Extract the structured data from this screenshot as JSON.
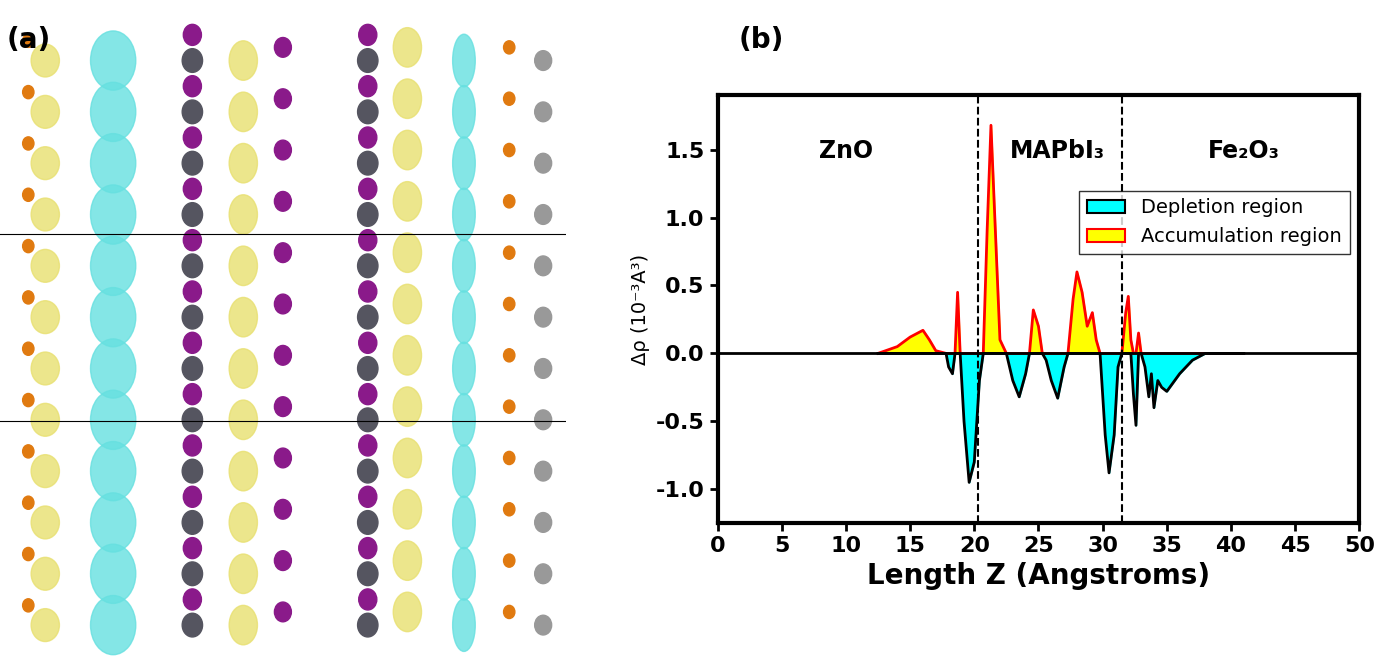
{
  "chart_data": {
    "type": "area",
    "panel_labels": [
      "(a)",
      "(b)"
    ],
    "x_label": "Length Z (Angstroms)",
    "y_label": "Δρ (10⁻³A³)",
    "regions": [
      "ZnO",
      "MAPbI₃",
      "Fe₂O₃"
    ],
    "boundaries": [
      20.3,
      31.5
    ],
    "x": [
      12.5,
      14,
      15,
      16,
      16.5,
      17,
      17.8,
      18,
      18.3,
      18.5,
      18.7,
      18.9,
      19.2,
      19.6,
      20.0,
      20.4,
      20.7,
      21.0,
      21.3,
      21.6,
      22.0,
      22.5,
      23,
      23.5,
      24,
      24.3,
      24.6,
      25,
      25.3,
      25.6,
      26.0,
      26.5,
      27,
      27.3,
      27.7,
      28,
      28.4,
      28.8,
      29.2,
      29.5,
      29.8,
      30.2,
      30.5,
      30.9,
      31.2,
      31.5,
      31.8,
      32,
      32.2,
      32.4,
      32.6,
      32.8,
      33.0,
      33.3,
      33.6,
      33.8,
      34.0,
      34.3,
      34.6,
      35,
      36,
      37,
      38,
      41
    ],
    "series": [
      {
        "name": "Depletion region",
        "color": "#00ffff",
        "values": [
          0,
          0,
          0,
          0,
          0,
          0,
          0,
          -0.1,
          -0.15,
          0,
          0,
          0,
          -0.5,
          -0.95,
          -0.8,
          -0.2,
          0,
          0,
          0,
          0,
          0,
          0,
          -0.2,
          -0.32,
          -0.15,
          0,
          0,
          0,
          0,
          -0.05,
          -0.2,
          -0.33,
          -0.1,
          0,
          0,
          0,
          0,
          0,
          0,
          0,
          0,
          -0.6,
          -0.88,
          -0.6,
          -0.1,
          0,
          0,
          0,
          0,
          -0.3,
          -0.53,
          0,
          0,
          -0.1,
          -0.32,
          -0.15,
          -0.4,
          -0.2,
          -0.25,
          -0.28,
          -0.15,
          -0.05,
          0,
          0
        ]
      },
      {
        "name": "Accumulation region",
        "color": "#ffff00",
        "values": [
          0,
          0.05,
          0.12,
          0.17,
          0.1,
          0.02,
          0,
          0,
          0,
          0,
          0.45,
          0,
          0,
          0,
          0,
          0,
          0,
          0.9,
          1.68,
          1.0,
          0.1,
          0,
          0,
          0,
          0,
          0,
          0.32,
          0.2,
          0,
          0,
          0,
          0,
          0,
          0,
          0.4,
          0.6,
          0.45,
          0.2,
          0.3,
          0.1,
          0,
          0,
          0,
          0,
          0,
          0,
          0.3,
          0.42,
          0.1,
          0,
          0,
          0.15,
          0,
          0,
          0,
          0,
          0,
          0,
          0,
          0,
          0,
          0,
          0,
          0
        ]
      }
    ],
    "xlim": [
      0,
      50
    ],
    "ylim": [
      -1.25,
      1.9
    ],
    "xticks": [
      0,
      5,
      10,
      15,
      20,
      25,
      30,
      35,
      40,
      45,
      50
    ],
    "yticks": [
      {
        "value": -1.0,
        "label": "-1.0"
      },
      {
        "value": -0.5,
        "label": "-0.5"
      },
      {
        "value": 0.0,
        "label": "0.0"
      },
      {
        "value": 0.5,
        "label": "0.5"
      },
      {
        "value": 1.0,
        "label": "1.0"
      },
      {
        "value": 1.5,
        "label": "1.5"
      }
    ],
    "legend": "upper right"
  }
}
